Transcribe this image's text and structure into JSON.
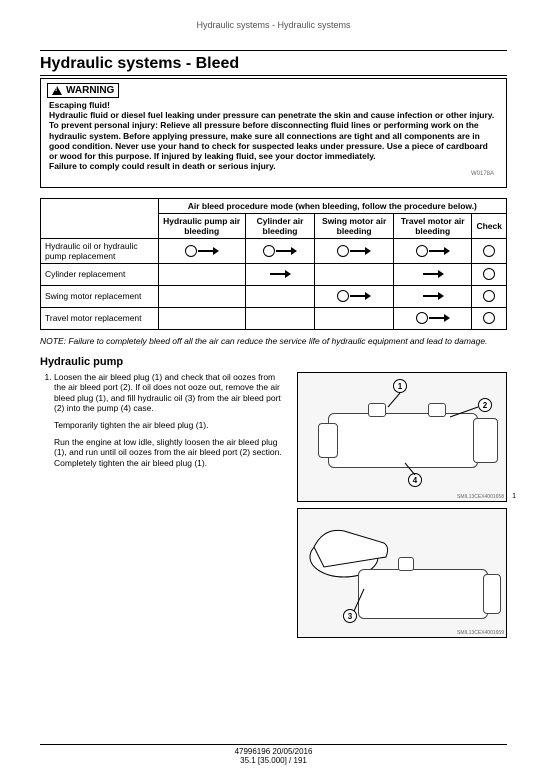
{
  "header": {
    "breadcrumb": "Hydraulic systems - Hydraulic systems"
  },
  "title": "Hydraulic systems - Bleed",
  "warning": {
    "label": "WARNING",
    "lead": "Escaping fluid!",
    "body": "Hydraulic fluid or diesel fuel leaking under pressure can penetrate the skin and cause infection or other injury. To prevent personal injury: Relieve all pressure before disconnecting fluid lines or performing work on the hydraulic system. Before applying pressure, make sure all connections are tight and all components are in good condition. Never use your hand to check for suspected leaks under pressure. Use a piece of cardboard or wood for this purpose. If injured by leaking fluid, see your doctor immediately.",
    "fail": "Failure to comply could result in death or serious injury.",
    "code": "W0178A"
  },
  "table": {
    "caption": "Air bleed procedure mode (when bleeding, follow the procedure below.)",
    "cols": [
      "Hydraulic pump air bleeding",
      "Cylinder air bleeding",
      "Swing motor air bleeding",
      "Travel motor air bleeding",
      "Check"
    ],
    "rows": [
      {
        "label": "Hydraulic oil or hydraulic pump replacement",
        "cells": [
          "circle-arrow",
          "circle-arrow",
          "circle-arrow",
          "circle-arrow",
          "circle"
        ]
      },
      {
        "label": "Cylinder replacement",
        "cells": [
          "",
          "arrow",
          "",
          "arrow",
          "circle"
        ]
      },
      {
        "label": "Swing motor replacement",
        "cells": [
          "",
          "",
          "circle-arrow",
          "arrow",
          "circle"
        ]
      },
      {
        "label": "Travel motor replacement",
        "cells": [
          "",
          "",
          "",
          "circle-arrow",
          "circle"
        ]
      }
    ]
  },
  "note": "NOTE: Failure to completely bleed off all the air can reduce the service life of hydraulic equipment and lead to damage.",
  "section": {
    "title": "Hydraulic pump"
  },
  "step1": {
    "num": "1.",
    "p1": "Loosen the air bleed plug (1) and check that oil oozes from the air bleed port (2). If oil does not ooze out, remove the air bleed plug (1), and fill hydraulic oil (3) from the air bleed port (2) into the pump (4) case.",
    "p2": "Temporarily tighten the air bleed plug (1).",
    "p3": "Run the engine at low idle, slightly loosen the air bleed plug (1), and run until oil oozes from the air bleed port (2) section. Completely tighten the air bleed plug (1)."
  },
  "fig1": {
    "callouts": {
      "c1": "1",
      "c2": "2",
      "c4": "4"
    },
    "credit": "SMIL13CEX4001658",
    "page": "1"
  },
  "fig2": {
    "callouts": {
      "c3": "3"
    },
    "credit": "SMIL13CEX4001659"
  },
  "footer": {
    "meta": "47996196 20/05/2016",
    "page": "35.1 [35.000] / 191"
  },
  "style": {
    "border_color": "#000000",
    "bg": "#ffffff",
    "fig_bg": "#f6f6f6"
  }
}
